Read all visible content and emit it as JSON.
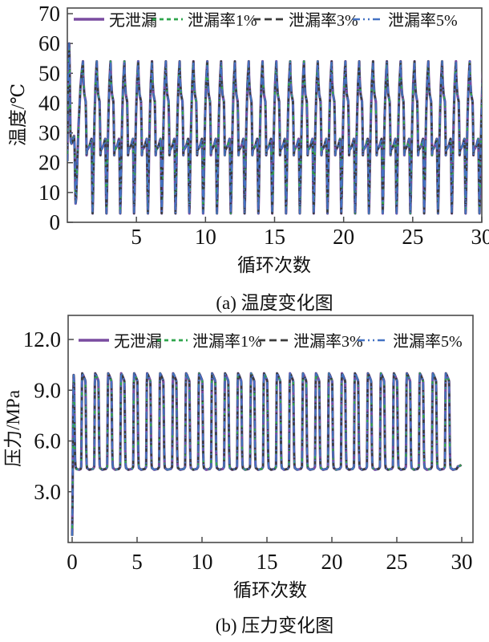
{
  "page": {
    "background": "#ffffff",
    "axis_color": "#4a4a4a",
    "text_color": "#111111"
  },
  "chart_data": [
    {
      "id": "temperature",
      "type": "line",
      "caption": "(a) 温度变化图",
      "xlabel": "循环次数",
      "ylabel": "温度/℃",
      "xlim": [
        0,
        30
      ],
      "ylim": [
        0,
        71.9
      ],
      "xticks": {
        "values": [
          5,
          10,
          15,
          20,
          25,
          30
        ],
        "labels": [
          "5",
          "10",
          "15",
          "20",
          "25",
          "30"
        ]
      },
      "yticks": {
        "values": [
          0,
          10,
          20,
          30,
          40,
          50,
          60,
          70
        ],
        "labels": [
          "0",
          "10",
          "20",
          "30",
          "40",
          "50",
          "60",
          "70"
        ]
      },
      "grid": false,
      "legend_position": "top-inside",
      "note": "30个热循环, 四条曲线(无泄漏/1%/3%/5%)几乎完全重合; 每循环自约3℃骤升到峰值约54℃(首循环60℃), 回落到约40℃台阶后骤降到约22℃, 缓升至约28℃再骤降",
      "series": [
        {
          "key": "no-leak",
          "name": "无泄漏",
          "color": "#7A4CA0",
          "dash": [],
          "width": 3.2
        },
        {
          "key": "leak-1pct",
          "name": "泄漏率1%",
          "color": "#2FA64C",
          "dash": [
            5,
            4
          ],
          "width": 2.4
        },
        {
          "key": "leak-3pct",
          "name": "泄漏率3%",
          "color": "#3C3C3C",
          "dash": [
            9,
            5
          ],
          "width": 2.4
        },
        {
          "key": "leak-5pct",
          "name": "泄漏率5%",
          "color": "#4472C4",
          "dash": [
            9,
            4,
            2,
            4,
            2,
            4
          ],
          "width": 2.0
        }
      ],
      "waveform": {
        "initial": [
          [
            0,
            20.5
          ],
          [
            0.04,
            43
          ],
          [
            0.06,
            49.5
          ],
          [
            0.075,
            48
          ],
          [
            0.12,
            58
          ],
          [
            0.135,
            60
          ],
          [
            0.16,
            54
          ],
          [
            0.19,
            43
          ],
          [
            0.22,
            31
          ],
          [
            0.25,
            27.2
          ],
          [
            0.3,
            26.4
          ],
          [
            0.36,
            27
          ],
          [
            0.44,
            28.5
          ],
          [
            0.49,
            29
          ],
          [
            0.53,
            25
          ],
          [
            0.57,
            13
          ],
          [
            0.6,
            6.3
          ],
          [
            0.64,
            8
          ],
          [
            0.72,
            20
          ],
          [
            0.82,
            33
          ],
          [
            0.95,
            45.5
          ],
          [
            1.05,
            50.8
          ],
          [
            1.13,
            54
          ]
        ],
        "cycle_start": 1.13,
        "cycle_period": 1.0,
        "cycle_count": 29,
        "cycle": [
          [
            0,
            54
          ],
          [
            0.02,
            49.5
          ],
          [
            0.05,
            46.5
          ],
          [
            0.1,
            43
          ],
          [
            0.2,
            40.5
          ],
          [
            0.235,
            33
          ],
          [
            0.265,
            22.5
          ],
          [
            0.295,
            24.2
          ],
          [
            0.38,
            24.8
          ],
          [
            0.5,
            26
          ],
          [
            0.58,
            27.5
          ],
          [
            0.615,
            28
          ],
          [
            0.645,
            22
          ],
          [
            0.675,
            10
          ],
          [
            0.7,
            3
          ],
          [
            0.735,
            9
          ],
          [
            0.78,
            22
          ],
          [
            0.845,
            36
          ],
          [
            0.91,
            46.5
          ],
          [
            0.955,
            50.5
          ],
          [
            1,
            54
          ]
        ],
        "tail": []
      }
    },
    {
      "id": "pressure",
      "type": "line",
      "caption": "(b) 压力变化图",
      "xlabel": "循环次数",
      "ylabel": "压力/MPa",
      "xlim": [
        0,
        30
      ],
      "ylim": [
        0,
        13.4
      ],
      "xticks": {
        "values": [
          0,
          5,
          10,
          15,
          20,
          25,
          30
        ],
        "labels": [
          "0",
          "5",
          "10",
          "15",
          "20",
          "25",
          "30"
        ]
      },
      "yticks": {
        "values": [
          3,
          6,
          9,
          12
        ],
        "labels": [
          "3.0",
          "6.0",
          "9.0",
          "12.0"
        ]
      },
      "grid": false,
      "legend_position": "top-inside",
      "note": "30个压力循环, 四条曲线几乎完全重合; 方波状: 自约0.4 MPa起升, 每循环在约4.3 MPa平台与约9.9 MPa(顶部缓降至9.5)平台之间切换",
      "series": [
        {
          "key": "no-leak",
          "name": "无泄漏",
          "color": "#7A4CA0",
          "dash": [],
          "width": 3.2
        },
        {
          "key": "leak-1pct",
          "name": "泄漏率1%",
          "color": "#2FA64C",
          "dash": [
            5,
            4
          ],
          "width": 2.4
        },
        {
          "key": "leak-3pct",
          "name": "泄漏率3%",
          "color": "#3C3C3C",
          "dash": [
            9,
            5
          ],
          "width": 2.4
        },
        {
          "key": "leak-5pct",
          "name": "泄漏率5%",
          "color": "#4472C4",
          "dash": [
            9,
            4,
            2,
            4,
            2,
            4
          ],
          "width": 2.0
        }
      ],
      "waveform": {
        "initial": [
          [
            0,
            0.4
          ],
          [
            0.03,
            2.5
          ],
          [
            0.08,
            8
          ],
          [
            0.115,
            9.9
          ],
          [
            0.15,
            9.55
          ],
          [
            0.18,
            7.5
          ],
          [
            0.22,
            5
          ],
          [
            0.26,
            4.5
          ],
          [
            0.32,
            4.35
          ],
          [
            0.55,
            4.3
          ],
          [
            0.66,
            4.35
          ],
          [
            0.7,
            4.5
          ]
        ],
        "cycle_start": 0.7,
        "cycle_period": 1.0,
        "cycle_count": 29,
        "cycle": [
          [
            0,
            4.5
          ],
          [
            0.012,
            5.3
          ],
          [
            0.05,
            9.4
          ],
          [
            0.075,
            10
          ],
          [
            0.1,
            9.9
          ],
          [
            0.13,
            9.93
          ],
          [
            0.3,
            9.6
          ],
          [
            0.325,
            9.5
          ],
          [
            0.345,
            8.5
          ],
          [
            0.385,
            5.5
          ],
          [
            0.415,
            4.6
          ],
          [
            0.45,
            4.4
          ],
          [
            0.62,
            4.3
          ],
          [
            0.9,
            4.35
          ],
          [
            0.985,
            4.45
          ],
          [
            1,
            4.5
          ]
        ],
        "tail": [
          [
            29.74,
            4.5
          ],
          [
            29.9,
            4.55
          ],
          [
            29.95,
            4.6
          ]
        ]
      }
    }
  ]
}
